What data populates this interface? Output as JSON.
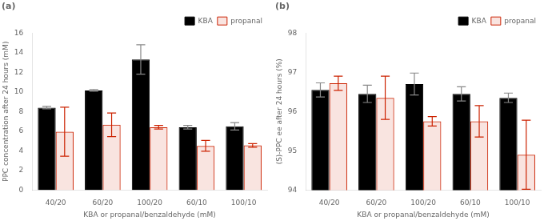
{
  "chart_data": [
    {
      "type": "bar",
      "title": "(a)",
      "xlabel": "KBA or propanal/benzaldehyde (mM)",
      "ylabel": "PPC concentration after 24 hours (mM)",
      "categories": [
        "40/20",
        "60/20",
        "100/20",
        "60/10",
        "100/10"
      ],
      "series": [
        {
          "name": "KBA",
          "color": "#000000",
          "values": [
            8.4,
            10.15,
            13.3,
            6.4,
            6.5
          ],
          "errors": [
            0.12,
            0.08,
            1.5,
            0.18,
            0.38
          ]
        },
        {
          "name": "propanal",
          "color": "#cc2200",
          "values": [
            5.95,
            6.65,
            6.4,
            4.5,
            4.55
          ],
          "errors": [
            2.5,
            1.2,
            0.18,
            0.55,
            0.18
          ]
        }
      ],
      "ylim": [
        0,
        16
      ],
      "yticks": [
        0,
        2,
        4,
        6,
        8,
        10,
        12,
        14,
        16
      ],
      "grid": false,
      "legend": "upper right"
    },
    {
      "type": "bar",
      "title": "(b)",
      "xlabel": "KBA or propanal/benzaldehyde (mM)",
      "ylabel": "(S)-PPC ee after 24 hours (%)",
      "categories": [
        "40/20",
        "60/20",
        "100/20",
        "60/10",
        "100/10"
      ],
      "series": [
        {
          "name": "KBA",
          "color": "#000000",
          "values": [
            96.55,
            96.45,
            96.7,
            96.45,
            96.35
          ],
          "errors": [
            0.18,
            0.22,
            0.28,
            0.18,
            0.12
          ]
        },
        {
          "name": "propanal",
          "color": "#cc2200",
          "values": [
            96.72,
            96.35,
            95.75,
            95.75,
            94.9
          ],
          "errors": [
            0.18,
            0.55,
            0.12,
            0.4,
            0.88
          ]
        }
      ],
      "ylim": [
        94,
        98
      ],
      "yticks": [
        94,
        95,
        96,
        97,
        98
      ],
      "grid": false,
      "legend": "upper right"
    }
  ]
}
